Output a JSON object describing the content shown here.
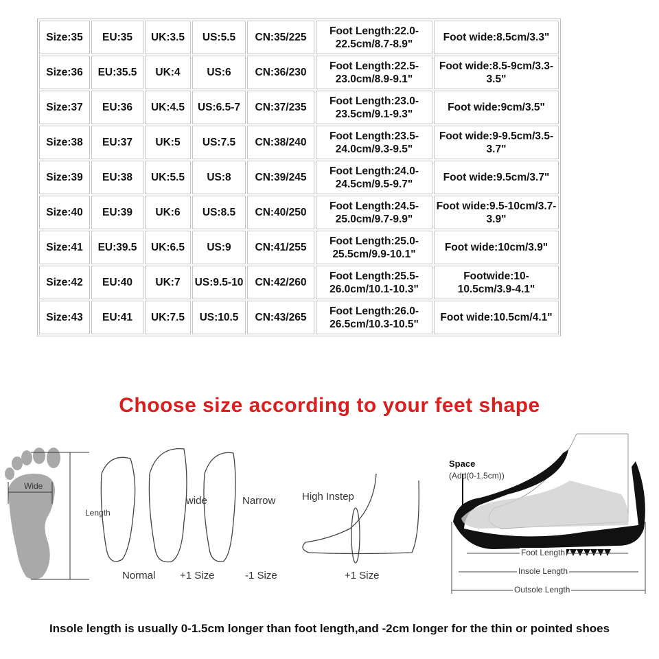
{
  "size_table": {
    "rows": [
      [
        "Size:35",
        "EU:35",
        "UK:3.5",
        "US:5.5",
        "CN:35/225",
        "Foot Length:22.0-22.5cm/8.7-8.9\"",
        "Foot wide:8.5cm/3.3\""
      ],
      [
        "Size:36",
        "EU:35.5",
        "UK:4",
        "US:6",
        "CN:36/230",
        "Foot Length:22.5-23.0cm/8.9-9.1\"",
        "Foot wide:8.5-9cm/3.3-3.5\""
      ],
      [
        "Size:37",
        "EU:36",
        "UK:4.5",
        "US:6.5-7",
        "CN:37/235",
        "Foot Length:23.0-23.5cm/9.1-9.3\"",
        "Foot wide:9cm/3.5\""
      ],
      [
        "Size:38",
        "EU:37",
        "UK:5",
        "US:7.5",
        "CN:38/240",
        "Foot Length:23.5-24.0cm/9.3-9.5\"",
        "Foot wide:9-9.5cm/3.5-3.7\""
      ],
      [
        "Size:39",
        "EU:38",
        "UK:5.5",
        "US:8",
        "CN:39/245",
        "Foot Length:24.0-24.5cm/9.5-9.7\"",
        "Foot wide:9.5cm/3.7\""
      ],
      [
        "Size:40",
        "EU:39",
        "UK:6",
        "US:8.5",
        "CN:40/250",
        "Foot Length:24.5-25.0cm/9.7-9.9\"",
        "Foot wide:9.5-10cm/3.7-3.9\""
      ],
      [
        "Size:41",
        "EU:39.5",
        "UK:6.5",
        "US:9",
        "CN:41/255",
        "Foot Length:25.0-25.5cm/9.9-10.1\"",
        "Foot wide:10cm/3.9\""
      ],
      [
        "Size:42",
        "EU:40",
        "UK:7",
        "US:9.5-10",
        "CN:42/260",
        "Foot Length:25.5-26.0cm/10.1-10.3\"",
        "Footwide:10-10.5cm/3.9-4.1\""
      ],
      [
        "Size:43",
        "EU:41",
        "UK:7.5",
        "US:10.5",
        "CN:43/265",
        "Foot Length:26.0-26.5cm/10.3-10.5\"",
        "Foot wide:10.5cm/4.1\""
      ]
    ]
  },
  "headline": "Choose size according to your feet shape",
  "headline_color": "#d9201f",
  "diagram": {
    "wide": "Wide",
    "length": "Length",
    "normal": "Normal",
    "wide_foot": "wide",
    "plus_one": "+1 Size",
    "narrow": "Narrow",
    "minus_one": "-1 Size",
    "high_instep": "High Instep",
    "plus_one_instep": "+1 Size",
    "space": "Space",
    "space_add": "(Add(0-1.5cm))",
    "foot_length": "Foot Length",
    "insole_length": "Insole Length",
    "outsole_length": "Outsole Length"
  },
  "footnote": "Insole length is usually 0-1.5cm longer than foot length,and -2cm longer for the thin or pointed shoes"
}
